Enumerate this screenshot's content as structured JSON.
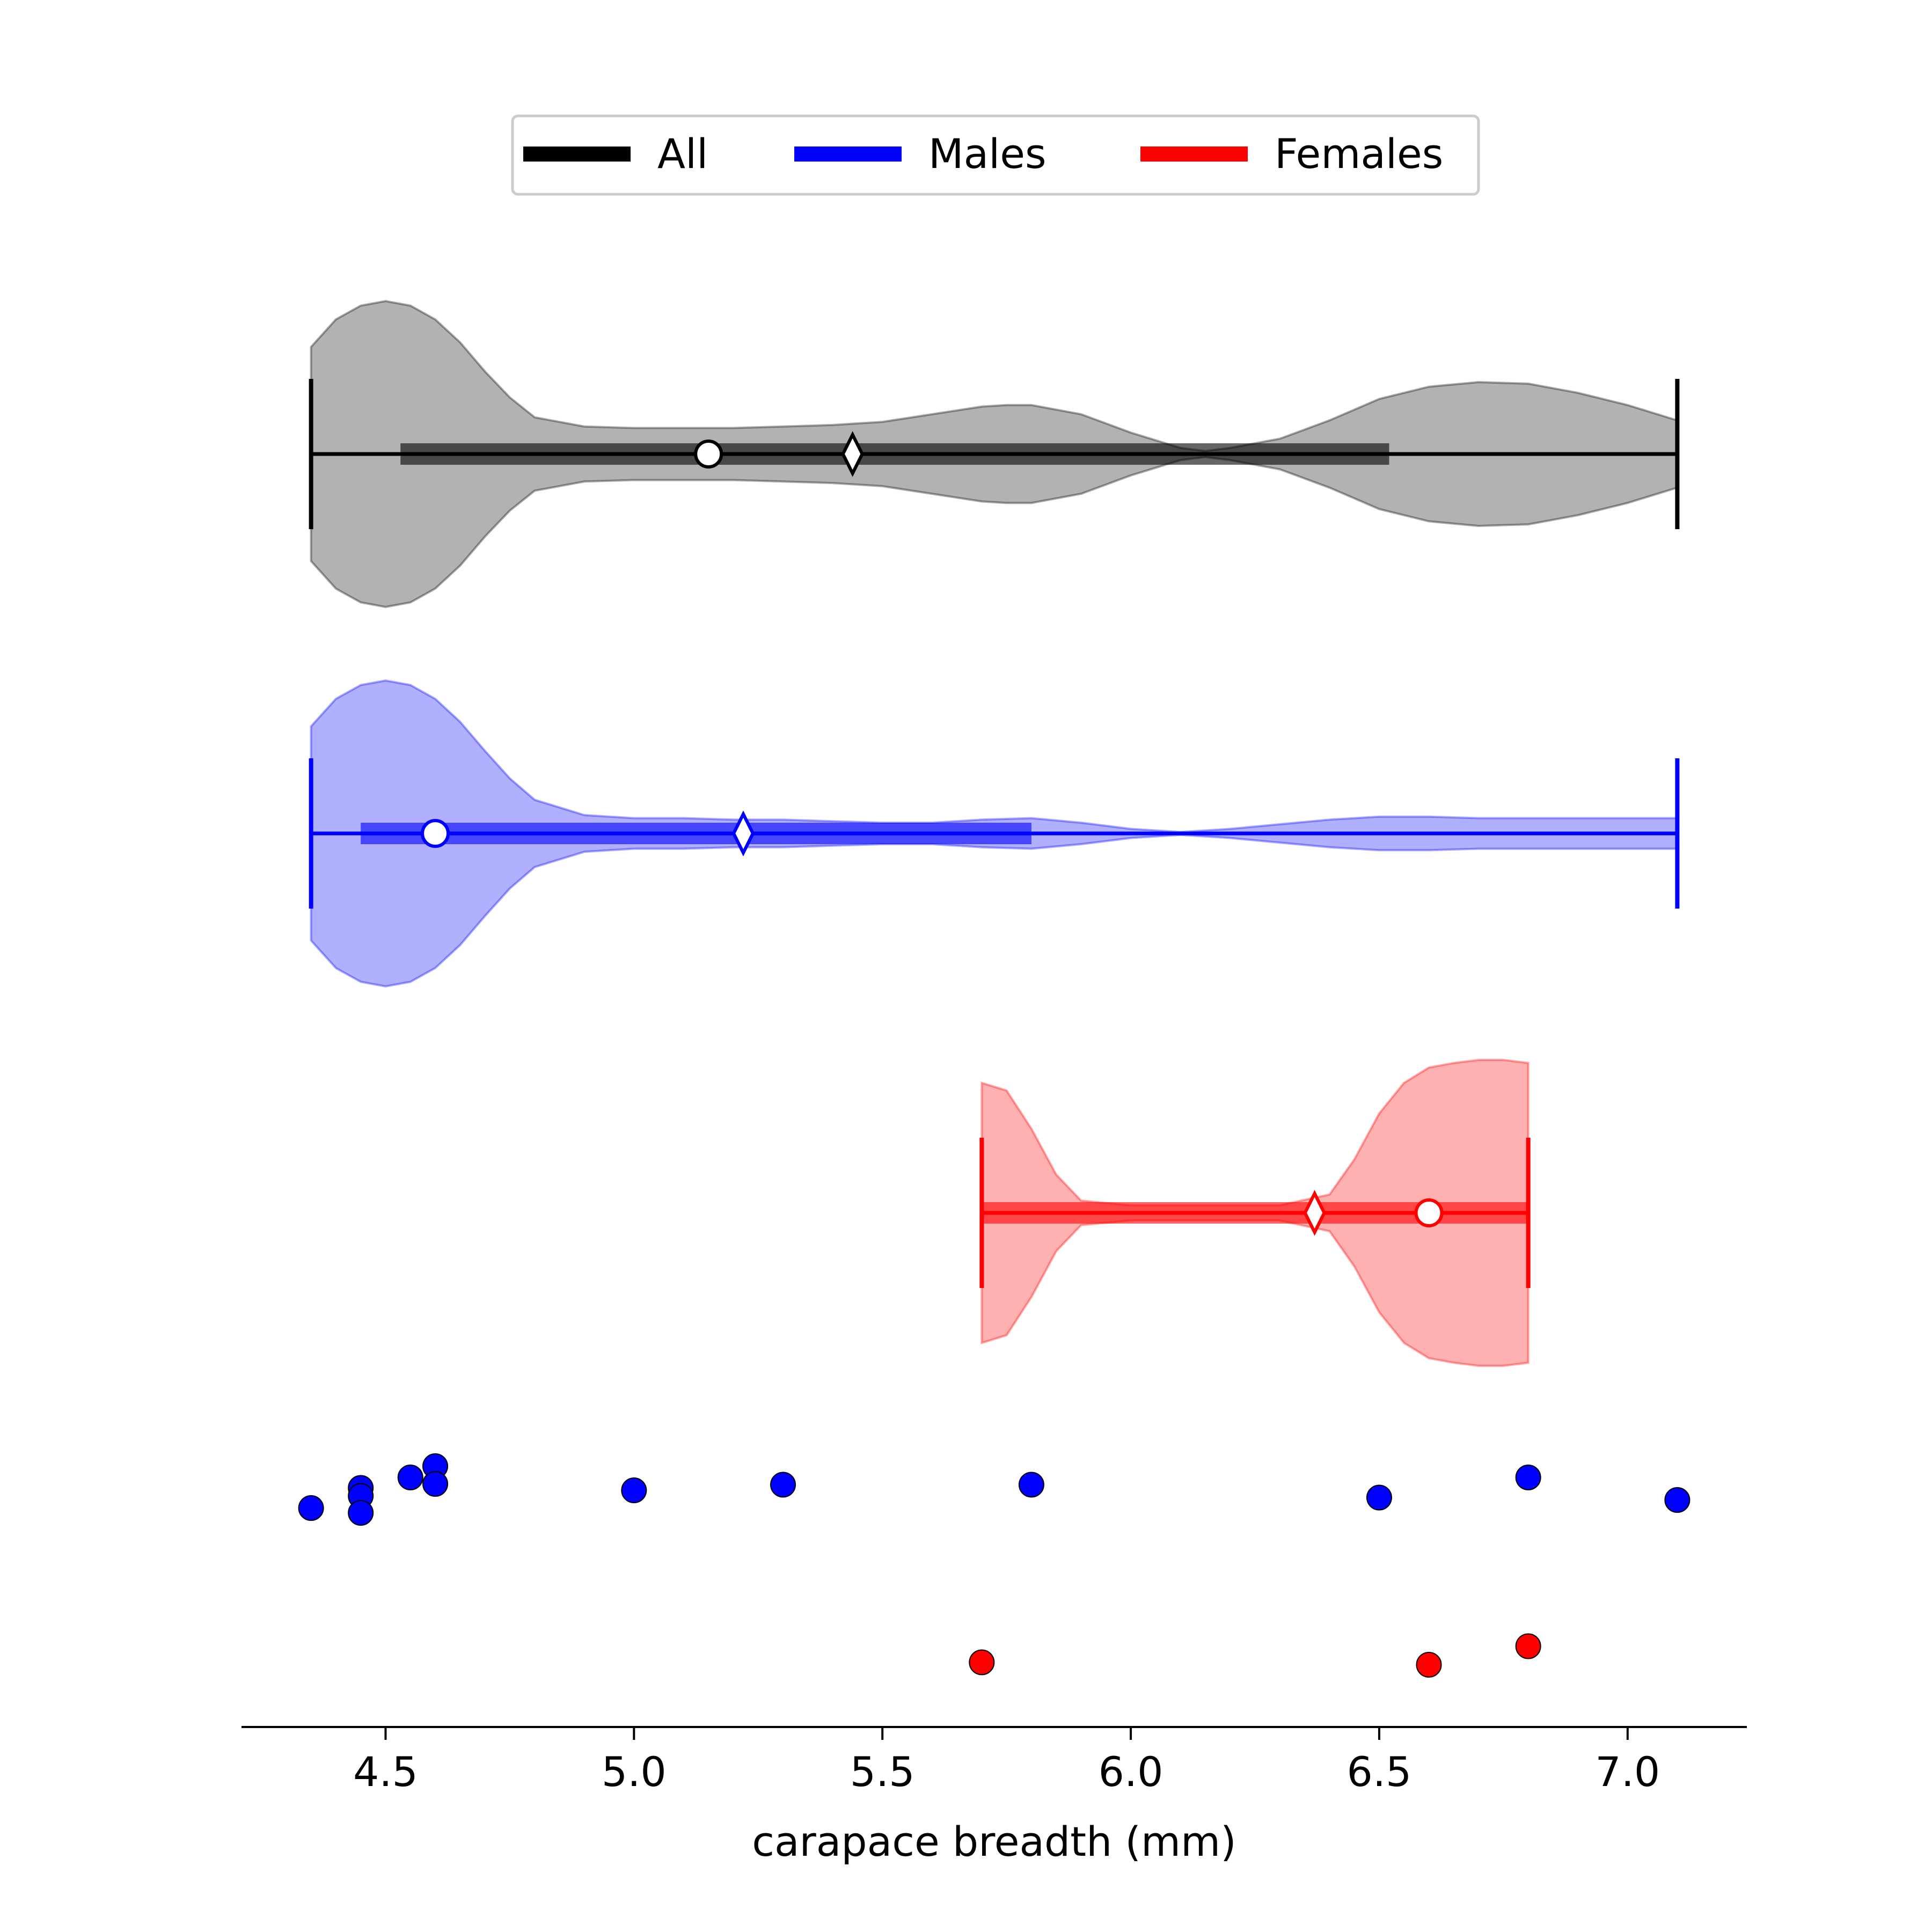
{
  "chart_data": {
    "type": "violin",
    "orientation": "horizontal",
    "title": "",
    "xlabel": "carapace breadth (mm)",
    "ylabel": "",
    "xlim": [
      4.21,
      7.24
    ],
    "xticks": [
      "4.5",
      "5.0",
      "5.5",
      "6.0",
      "6.5",
      "7.0"
    ],
    "legend": {
      "placement": "top-center",
      "entries": [
        {
          "label": "All",
          "color": "#000000"
        },
        {
          "label": "Males",
          "color": "#0000ff"
        },
        {
          "label": "Females",
          "color": "#ff0000"
        }
      ]
    },
    "violins": [
      {
        "name": "All",
        "color": "#000000",
        "fill": "#b2b2b2",
        "min": 4.35,
        "max": 7.1,
        "q1": 4.53,
        "q3": 6.52,
        "median": 5.15,
        "mean": 5.44,
        "density": [
          [
            4.35,
            0.7
          ],
          [
            4.4,
            0.88
          ],
          [
            4.45,
            0.97
          ],
          [
            4.5,
            1.0
          ],
          [
            4.55,
            0.97
          ],
          [
            4.6,
            0.88
          ],
          [
            4.65,
            0.73
          ],
          [
            4.7,
            0.54
          ],
          [
            4.75,
            0.37
          ],
          [
            4.8,
            0.24
          ],
          [
            4.9,
            0.18
          ],
          [
            5.0,
            0.17
          ],
          [
            5.1,
            0.17
          ],
          [
            5.2,
            0.17
          ],
          [
            5.3,
            0.18
          ],
          [
            5.4,
            0.19
          ],
          [
            5.5,
            0.21
          ],
          [
            5.6,
            0.26
          ],
          [
            5.7,
            0.31
          ],
          [
            5.75,
            0.32
          ],
          [
            5.8,
            0.32
          ],
          [
            5.9,
            0.26
          ],
          [
            6.0,
            0.14
          ],
          [
            6.1,
            0.04
          ],
          [
            6.15,
            0.02
          ],
          [
            6.2,
            0.04
          ],
          [
            6.3,
            0.1
          ],
          [
            6.4,
            0.22
          ],
          [
            6.5,
            0.36
          ],
          [
            6.6,
            0.44
          ],
          [
            6.7,
            0.47
          ],
          [
            6.8,
            0.46
          ],
          [
            6.9,
            0.4
          ],
          [
            7.0,
            0.32
          ],
          [
            7.1,
            0.22
          ]
        ]
      },
      {
        "name": "Males",
        "color": "#0000ff",
        "fill": "#b0b0ff",
        "min": 4.35,
        "max": 7.1,
        "q1": 4.45,
        "q3": 5.8,
        "median": 4.6,
        "mean": 5.22,
        "density": [
          [
            4.35,
            0.7
          ],
          [
            4.4,
            0.88
          ],
          [
            4.45,
            0.97
          ],
          [
            4.5,
            1.0
          ],
          [
            4.55,
            0.97
          ],
          [
            4.6,
            0.88
          ],
          [
            4.65,
            0.73
          ],
          [
            4.7,
            0.54
          ],
          [
            4.75,
            0.36
          ],
          [
            4.8,
            0.22
          ],
          [
            4.9,
            0.12
          ],
          [
            5.0,
            0.1
          ],
          [
            5.1,
            0.1
          ],
          [
            5.2,
            0.09
          ],
          [
            5.3,
            0.09
          ],
          [
            5.4,
            0.08
          ],
          [
            5.5,
            0.07
          ],
          [
            5.6,
            0.07
          ],
          [
            5.7,
            0.09
          ],
          [
            5.8,
            0.1
          ],
          [
            5.9,
            0.07
          ],
          [
            6.0,
            0.03
          ],
          [
            6.1,
            0.01
          ],
          [
            6.2,
            0.03
          ],
          [
            6.3,
            0.06
          ],
          [
            6.4,
            0.09
          ],
          [
            6.5,
            0.11
          ],
          [
            6.6,
            0.11
          ],
          [
            6.7,
            0.1
          ],
          [
            6.8,
            0.1
          ],
          [
            6.9,
            0.1
          ],
          [
            7.0,
            0.1
          ],
          [
            7.1,
            0.1
          ]
        ]
      },
      {
        "name": "Females",
        "color": "#ff0000",
        "fill": "#ffb0b0",
        "min": 5.7,
        "max": 6.8,
        "q1": 5.7,
        "q3": 6.8,
        "median": 6.6,
        "mean": 6.37,
        "density": [
          [
            5.7,
            0.85
          ],
          [
            5.75,
            0.8
          ],
          [
            5.8,
            0.55
          ],
          [
            5.85,
            0.25
          ],
          [
            5.9,
            0.08
          ],
          [
            6.0,
            0.05
          ],
          [
            6.1,
            0.05
          ],
          [
            6.2,
            0.05
          ],
          [
            6.3,
            0.05
          ],
          [
            6.4,
            0.12
          ],
          [
            6.45,
            0.35
          ],
          [
            6.5,
            0.65
          ],
          [
            6.55,
            0.85
          ],
          [
            6.6,
            0.95
          ],
          [
            6.65,
            0.98
          ],
          [
            6.7,
            1.0
          ],
          [
            6.75,
            1.0
          ],
          [
            6.8,
            0.98
          ]
        ]
      }
    ],
    "points": [
      {
        "group": "Males",
        "color": "#0000ff",
        "x": 4.35,
        "jitter": -0.2
      },
      {
        "group": "Males",
        "color": "#0000ff",
        "x": 4.45,
        "jitter": 0.05
      },
      {
        "group": "Males",
        "color": "#0000ff",
        "x": 4.45,
        "jitter": -0.05
      },
      {
        "group": "Males",
        "color": "#0000ff",
        "x": 4.45,
        "jitter": -0.26
      },
      {
        "group": "Males",
        "color": "#0000ff",
        "x": 4.55,
        "jitter": 0.18
      },
      {
        "group": "Males",
        "color": "#0000ff",
        "x": 4.6,
        "jitter": 0.32
      },
      {
        "group": "Males",
        "color": "#0000ff",
        "x": 4.6,
        "jitter": 0.1
      },
      {
        "group": "Males",
        "color": "#0000ff",
        "x": 5.0,
        "jitter": 0.02
      },
      {
        "group": "Males",
        "color": "#0000ff",
        "x": 5.3,
        "jitter": 0.09
      },
      {
        "group": "Males",
        "color": "#0000ff",
        "x": 5.8,
        "jitter": 0.09
      },
      {
        "group": "Males",
        "color": "#0000ff",
        "x": 6.5,
        "jitter": -0.07
      },
      {
        "group": "Males",
        "color": "#0000ff",
        "x": 6.8,
        "jitter": 0.18
      },
      {
        "group": "Males",
        "color": "#0000ff",
        "x": 7.1,
        "jitter": -0.1
      },
      {
        "group": "Females",
        "color": "#ff0000",
        "x": 5.7,
        "jitter": -0.05
      },
      {
        "group": "Females",
        "color": "#ff0000",
        "x": 6.6,
        "jitter": -0.08
      },
      {
        "group": "Females",
        "color": "#ff0000",
        "x": 6.8,
        "jitter": 0.15
      }
    ]
  }
}
